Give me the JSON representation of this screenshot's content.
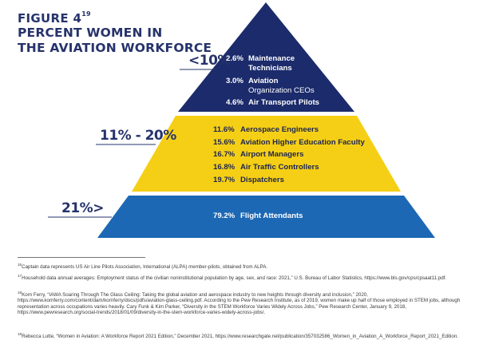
{
  "figure": {
    "label": "FIGURE 4",
    "label_sup": "19",
    "title_line1": "PERCENT WOMEN IN",
    "title_line2": "THE AVIATION WORKFORCE"
  },
  "tiers": [
    {
      "label": "<10%",
      "color": "#1b2b6b",
      "items": [
        {
          "pct": "2.6%",
          "job": "Maintenance",
          "job2": "Technicians"
        },
        {
          "pct": "3.0%",
          "job": "Aviation",
          "job2": "Organization CEOs"
        },
        {
          "pct": "4.6%",
          "job": "Air Transport Pilots"
        }
      ]
    },
    {
      "label": "11% - 20%",
      "color": "#f5cf15",
      "items": [
        {
          "pct": "11.6%",
          "job": "Aerospace Engineers"
        },
        {
          "pct": "15.6%",
          "job": "Aviation Higher Education Faculty"
        },
        {
          "pct": "16.7%",
          "job": "Airport Managers"
        },
        {
          "pct": "16.8%",
          "job": "Air Traffic Controllers"
        },
        {
          "pct": "19.7%",
          "job": "Dispatchers"
        }
      ]
    },
    {
      "label": "21%>",
      "color": "#1c68b4",
      "items": [
        {
          "pct": "79.2%",
          "job": "Flight Attendants"
        }
      ]
    }
  ],
  "footnotes": [
    {
      "num": "16",
      "text": "Captain data represents US Air Line Pilots Association, International (ALPA) member-pilots, obtained from ALPA."
    },
    {
      "num": "17",
      "text": "Household data annual averages: Employment status of the civilian noninstitutional population by age, sex, and race: 2021,” U.S. Bureau of Labor Statistics, https://www.bls.gov/cps/cpsaat11.pdf."
    },
    {
      "num": "18",
      "text": "Korn Ferry, “IAWA Soaring Through The Glass Ceiling: Taking the global aviation and aerospace industry to new heights through diversity and inclusion,” 2020, https://www.kornferry.com/content/dam/kornferry/docs/pdfs/aviation-glass-ceiling.pdf. According to the Pew Research Institute, as of 2019, women make up half of those employed in STEM jobs, although representation across occupations varies heavily. Cary Funk & Kim Parker, “Diversity in the STEM Workforce Varies Widely Across Jobs,” Pew Research Center, January 9, 2018, https://www.pewresearch.org/social-trends/2018/01/09/diversity-in-the-stem-workforce-varies-widely-across-jobs/."
    },
    {
      "num": "19",
      "text": "Rebecca Lutte, “Women in Aviation: A Workforce Report 2021 Edition,” December 2021, https://www.researchgate.net/publication/357032586_Women_in_Aviation_A_Workforce_Report_2021_Edition."
    }
  ]
}
